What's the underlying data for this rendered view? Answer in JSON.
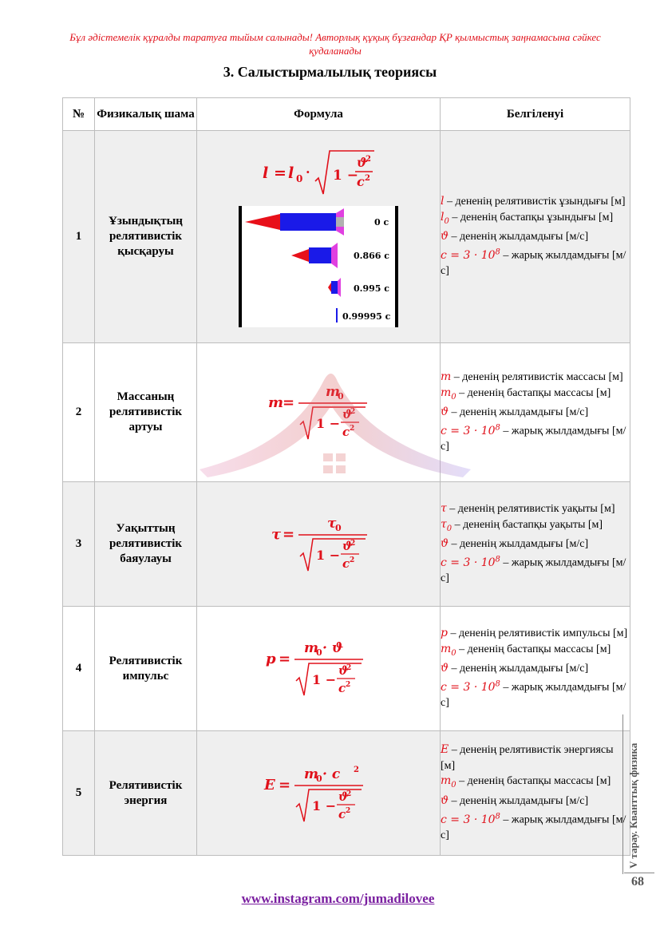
{
  "header": {
    "notice": "Бұл әдістемелік құралды таратуға тыйым салынады! Авторлық құқық бұзғандар ҚР қылмыстық заңнамасына сәйкес  қудаланады",
    "title": "3. Салыстырмалылық теориясы"
  },
  "table": {
    "headers": [
      "№",
      "Физикалық шама",
      "Формула",
      "Белгіленуі"
    ],
    "rows": [
      {
        "num": "1",
        "name": "Ұзындықтың релятивистік қысқаруы",
        "formula_lhs": "l",
        "formula_mid": "l",
        "desc": [
          {
            "sym": "l",
            "sub": "",
            "text": " –  дененің релятивистік ұзындығы [м]"
          },
          {
            "sym": "l",
            "sub": "0",
            "text": " –  дененің бастапқы ұзындығы [м]"
          },
          {
            "sym": "ϑ",
            "sub": "",
            "text": " –  дененің жылдамдығы [м/с]"
          },
          {
            "sym": "c = 3 · 10",
            "sub": "",
            "sup": "8",
            "text": " –  жарық жылдамдығы [м/с]"
          }
        ],
        "speeds": [
          "0 c",
          "0.866 c",
          "0.995 c",
          "0.99995 c"
        ]
      },
      {
        "num": "2",
        "name": "Массаның релятивистік артуы",
        "formula_lhs": "m",
        "formula_num": "m",
        "desc": [
          {
            "sym": "m",
            "sub": "",
            "text": " –  дененің релятивистік массасы [м]"
          },
          {
            "sym": "m",
            "sub": "0",
            "text": " –  дененің бастапқы массасы [м]"
          },
          {
            "sym": "ϑ",
            "sub": "",
            "text": " –  дененің жылдамдығы [м/с]"
          },
          {
            "sym": "c = 3 · 10",
            "sub": "",
            "sup": "8",
            "text": " –  жарық жылдамдығы [м/с]"
          }
        ]
      },
      {
        "num": "3",
        "name": "Уақыттың релятивистік баяулауы",
        "formula_lhs": "τ",
        "formula_num": "τ",
        "desc": [
          {
            "sym": "τ",
            "sub": "",
            "text": " –  дененің релятивистік уақыты [м]"
          },
          {
            "sym": "τ",
            "sub": "0",
            "text": " –  дененің бастапқы уақыты [м]"
          },
          {
            "sym": "ϑ",
            "sub": "",
            "text": " –  дененің жылдамдығы [м/с]"
          },
          {
            "sym": "c = 3 · 10",
            "sub": "",
            "sup": "8",
            "text": " –  жарық жылдамдығы [м/с]"
          }
        ]
      },
      {
        "num": "4",
        "name": "Релятивистік импульс",
        "formula_lhs": "p",
        "formula_num": "m",
        "formula_num_tail": " · ϑ",
        "desc": [
          {
            "sym": "p",
            "sub": "",
            "text": " –  дененің релятивистік импульсы [м]"
          },
          {
            "sym": "m",
            "sub": "0",
            "text": " –  дененің бастапқы массасы [м]"
          },
          {
            "sym": "ϑ",
            "sub": "",
            "text": " –  дененің жылдамдығы [м/с]"
          },
          {
            "sym": "c = 3 · 10",
            "sub": "",
            "sup": "8",
            "text": " –  жарық жылдамдығы [м/с]"
          }
        ]
      },
      {
        "num": "5",
        "name": "Релятивистік энергия",
        "formula_lhs": "E",
        "formula_num": "m",
        "formula_num_tail": " · c",
        "desc": [
          {
            "sym": "E",
            "sub": "",
            "text": " –  дененің релятивистік энергиясы [м]"
          },
          {
            "sym": "m",
            "sub": "0",
            "text": " –  дененің бастапқы массасы [м]"
          },
          {
            "sym": "ϑ",
            "sub": "",
            "text": " –  дененің жылдамдығы [м/с]"
          },
          {
            "sym": "c = 3 · 10",
            "sub": "",
            "sup": "8",
            "text": " –  жарық жылдамдығы [м/с]"
          }
        ]
      }
    ]
  },
  "side": {
    "label": "V тарау. Кванттық физика",
    "page": "68"
  },
  "footer": {
    "link": "www.instagram.com/jumadilovee"
  },
  "colors": {
    "accent_red": "#e0101a",
    "link_purple": "#7a1fa0",
    "shade": "#efefef"
  }
}
